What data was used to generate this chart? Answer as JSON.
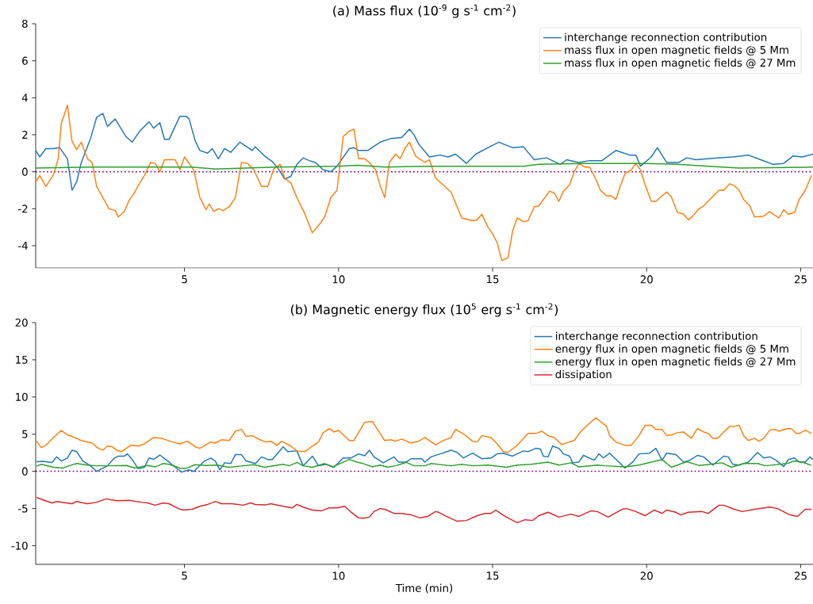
{
  "chart_data": [
    {
      "type": "line",
      "title": "(a) Mass flux (10$^{-9}$ g s$^{-1}$ cm$^{-2}$)",
      "xlim": [
        0.17,
        25.4
      ],
      "ylim": [
        -5.2,
        8
      ],
      "xticks": [
        5,
        10,
        15,
        20,
        25
      ],
      "yticks": [
        -4,
        -2,
        0,
        2,
        4,
        6,
        8
      ],
      "legend": "top right",
      "ref_lines": [
        {
          "axis": "y",
          "value": 0,
          "color": "#800080",
          "line_style": "dotted"
        }
      ],
      "series": [
        {
          "name": "interchange reconnection contribution",
          "color": "#1f77b4",
          "x": [
            0.17,
            0.3,
            0.5,
            0.75,
            0.95,
            1.2,
            1.35,
            1.5,
            1.65,
            1.95,
            2.15,
            2.35,
            2.5,
            2.75,
            3.1,
            3.3,
            3.55,
            3.85,
            4.0,
            4.2,
            4.35,
            4.5,
            4.85,
            5.05,
            5.15,
            5.35,
            5.5,
            5.75,
            5.9,
            6.1,
            6.3,
            6.5,
            6.8,
            7.2,
            7.3,
            7.6,
            7.85,
            8.05,
            8.25,
            8.45,
            8.65,
            8.85,
            9.05,
            9.25,
            9.5,
            9.75,
            9.95,
            10.35,
            10.5,
            10.65,
            10.95,
            11.35,
            11.7,
            12.05,
            12.3,
            12.45,
            12.6,
            12.95,
            13.3,
            13.55,
            13.8,
            14.15,
            14.45,
            14.85,
            15.2,
            15.65,
            16.0,
            16.35,
            16.75,
            17.2,
            17.4,
            17.8,
            18.15,
            18.55,
            19.0,
            19.45,
            19.65,
            19.8,
            20.15,
            20.35,
            20.65,
            21.05,
            21.3,
            21.6,
            22.3,
            22.8,
            23.3,
            23.7,
            24.1,
            24.45,
            24.75,
            25.05,
            25.4
          ],
          "values": [
            1.15,
            0.8,
            1.25,
            1.25,
            1.3,
            0.7,
            -1.0,
            -0.55,
            0.5,
            1.8,
            2.95,
            3.15,
            2.45,
            2.85,
            1.9,
            1.6,
            2.2,
            2.7,
            2.35,
            2.65,
            1.75,
            1.75,
            3.0,
            3.0,
            2.85,
            1.65,
            1.15,
            1.0,
            1.25,
            0.7,
            1.25,
            1.05,
            1.6,
            1.15,
            1.35,
            0.85,
            0.55,
            0.15,
            -0.4,
            -0.25,
            0.4,
            0.75,
            0.6,
            0.5,
            0.1,
            0.0,
            0.3,
            1.25,
            1.3,
            1.15,
            1.15,
            1.6,
            1.8,
            1.85,
            2.3,
            2.0,
            1.5,
            0.8,
            0.9,
            0.8,
            0.95,
            0.45,
            0.95,
            1.3,
            1.6,
            1.3,
            1.35,
            0.65,
            0.75,
            0.4,
            0.65,
            0.5,
            0.6,
            0.6,
            1.15,
            0.9,
            0.9,
            0.3,
            0.8,
            1.3,
            0.5,
            0.5,
            0.75,
            0.65,
            0.75,
            0.8,
            0.9,
            0.65,
            0.4,
            0.45,
            0.85,
            0.8,
            0.95
          ]
        },
        {
          "name": "mass flux in open magnetic fields @ 5 Mm",
          "color": "#ff7f0e",
          "x": [
            0.17,
            0.3,
            0.5,
            0.75,
            0.9,
            1.0,
            1.2,
            1.35,
            1.5,
            1.65,
            1.85,
            2.0,
            2.15,
            2.35,
            2.55,
            2.75,
            2.85,
            3.05,
            3.2,
            3.35,
            3.55,
            3.7,
            3.9,
            4.05,
            4.2,
            4.35,
            4.7,
            4.85,
            5.0,
            5.3,
            5.5,
            5.7,
            5.8,
            5.95,
            6.1,
            6.25,
            6.45,
            6.65,
            6.85,
            7.05,
            7.25,
            7.5,
            7.7,
            7.9,
            8.1,
            8.25,
            8.45,
            8.65,
            8.9,
            9.15,
            9.4,
            9.55,
            9.75,
            9.95,
            10.15,
            10.35,
            10.5,
            10.65,
            10.85,
            11.0,
            11.2,
            11.35,
            11.5,
            11.65,
            11.85,
            12.0,
            12.15,
            12.3,
            12.5,
            12.8,
            12.95,
            13.15,
            13.65,
            14.0,
            14.35,
            14.5,
            14.65,
            14.85,
            15.0,
            15.15,
            15.3,
            15.5,
            15.65,
            15.8,
            16.0,
            16.15,
            16.35,
            16.5,
            16.85,
            17.0,
            17.15,
            17.3,
            17.5,
            17.65,
            17.8,
            18.0,
            18.15,
            18.35,
            18.5,
            18.7,
            18.85,
            19.0,
            19.15,
            19.3,
            19.5,
            19.65,
            19.8,
            19.95,
            20.15,
            20.3,
            20.5,
            20.65,
            20.8,
            21.0,
            21.2,
            21.35,
            21.5,
            21.7,
            21.85,
            22.05,
            22.35,
            22.5,
            22.7,
            22.85,
            23.0,
            23.15,
            23.35,
            23.5,
            23.8,
            24.0,
            24.15,
            24.3,
            24.45,
            24.6,
            24.8,
            24.95,
            25.15,
            25.35
          ],
          "values": [
            -0.55,
            -0.2,
            -0.8,
            -0.15,
            0.7,
            2.6,
            3.6,
            1.65,
            1.2,
            1.6,
            0.7,
            0.5,
            -0.8,
            -1.4,
            -2.0,
            -2.1,
            -2.45,
            -2.15,
            -1.55,
            -1.2,
            -0.6,
            -0.2,
            0.5,
            0.45,
            0.0,
            0.65,
            0.65,
            0.1,
            0.8,
            0.1,
            -1.4,
            -2.05,
            -1.75,
            -2.15,
            -2.0,
            -2.1,
            -1.9,
            -1.4,
            0.5,
            0.45,
            0.1,
            -0.8,
            -0.8,
            0.15,
            0.4,
            -0.35,
            -0.6,
            -1.4,
            -2.25,
            -3.3,
            -2.8,
            -2.45,
            -1.4,
            -1.0,
            1.9,
            2.2,
            2.3,
            0.7,
            0.7,
            0.5,
            0.1,
            -0.75,
            -1.4,
            0.5,
            0.95,
            0.7,
            1.25,
            1.6,
            0.85,
            0.5,
            0.65,
            -0.35,
            -1.1,
            -2.5,
            -2.65,
            -2.6,
            -2.3,
            -3.0,
            -3.35,
            -3.85,
            -4.8,
            -4.65,
            -3.2,
            -2.5,
            -2.7,
            -2.65,
            -1.9,
            -1.85,
            -1.05,
            -1.15,
            -1.6,
            -1.05,
            -0.7,
            0.0,
            0.45,
            0.25,
            0.25,
            -0.4,
            -1.0,
            -1.3,
            -1.3,
            -1.5,
            -0.75,
            -0.1,
            0.1,
            0.45,
            0.1,
            -0.7,
            -1.6,
            -1.6,
            -1.3,
            -1.1,
            -1.35,
            -2.2,
            -2.3,
            -2.6,
            -2.4,
            -2.0,
            -1.85,
            -1.5,
            -1.0,
            -1.0,
            -0.65,
            -0.75,
            -1.0,
            -1.5,
            -1.85,
            -2.45,
            -2.4,
            -2.15,
            -2.35,
            -2.5,
            -2.05,
            -2.3,
            -2.2,
            -1.5,
            -1.0,
            -0.2
          ]
        },
        {
          "name": "mass flux in open magnetic fields @ 27 Mm",
          "color": "#2ca02c",
          "x": [
            0.17,
            2.0,
            4.0,
            5.2,
            6.0,
            8.0,
            10.0,
            10.6,
            11.5,
            13.0,
            16.0,
            16.5,
            18.0,
            20.0,
            21.0,
            22.0,
            23.0,
            25.4
          ],
          "values": [
            0.2,
            0.25,
            0.25,
            0.25,
            0.15,
            0.25,
            0.3,
            0.35,
            0.25,
            0.3,
            0.3,
            0.4,
            0.45,
            0.45,
            0.4,
            0.3,
            0.2,
            0.25
          ]
        }
      ]
    },
    {
      "type": "line",
      "title": "(b) Magnetic energy flux (10$^{5}$ erg s$^{-1}$ cm$^{-2}$)",
      "xlabel": "Time (min)",
      "xlim": [
        0.17,
        25.4
      ],
      "ylim": [
        -12.5,
        20
      ],
      "xticks": [
        5,
        10,
        15,
        20,
        25
      ],
      "yticks": [
        -10,
        -5,
        0,
        5,
        10,
        15,
        20
      ],
      "legend": "top right",
      "ref_lines": [
        {
          "axis": "y",
          "value": 0,
          "color": "#800080",
          "line_style": "dotted"
        }
      ],
      "series": [
        {
          "name": "interchange reconnection contribution",
          "color": "#1f77b4",
          "x": [
            0.2,
            0.4,
            0.7,
            0.85,
            1.0,
            1.2,
            1.35,
            1.5,
            1.7,
            1.95,
            2.15,
            2.5,
            2.7,
            2.85,
            3.05,
            3.15,
            3.3,
            3.5,
            3.7,
            3.85,
            4.0,
            4.2,
            4.5,
            4.7,
            4.9,
            5.15,
            5.3,
            5.65,
            5.85,
            6.0,
            6.15,
            6.3,
            6.5,
            6.65,
            6.85,
            7.0,
            7.3,
            7.5,
            7.7,
            7.85,
            8.2,
            8.35,
            8.65,
            8.85,
            9.15,
            9.35,
            9.6,
            9.85,
            10.15,
            10.4,
            10.65,
            10.85,
            11.0,
            11.15,
            11.45,
            11.8,
            11.95,
            12.2,
            12.35,
            12.7,
            12.8,
            13.0,
            13.3,
            13.65,
            13.85,
            14.05,
            14.35,
            14.65,
            14.95,
            15.15,
            15.35,
            15.65,
            16.0,
            16.15,
            16.4,
            16.55,
            16.65,
            16.8,
            16.95,
            17.15,
            17.3,
            17.5,
            17.6,
            17.8,
            17.95,
            18.3,
            18.45,
            18.6,
            18.8,
            19.3,
            19.55,
            19.75,
            20.1,
            20.3,
            20.5,
            20.65,
            20.95,
            21.2,
            21.4,
            21.65,
            21.85,
            22.15,
            22.5,
            22.65,
            22.8,
            23.0,
            23.3,
            23.6,
            23.8,
            24.0,
            24.2,
            24.45,
            24.6,
            24.8,
            24.95,
            25.15,
            25.3,
            25.4
          ],
          "values": [
            1.3,
            1.35,
            1.2,
            1.95,
            1.4,
            1.8,
            2.85,
            2.65,
            1.4,
            0.75,
            0.0,
            0.75,
            1.7,
            2.05,
            2.05,
            2.35,
            1.6,
            0.35,
            0.55,
            1.8,
            1.6,
            2.2,
            1.25,
            0.55,
            -0.1,
            0.2,
            0.0,
            1.4,
            1.8,
            1.4,
            0.2,
            1.15,
            1.05,
            2.25,
            2.25,
            1.4,
            1.05,
            1.95,
            1.6,
            1.6,
            3.3,
            2.65,
            2.75,
            0.75,
            2.05,
            0.75,
            0.95,
            0.55,
            1.8,
            1.8,
            2.35,
            2.1,
            2.85,
            1.95,
            1.15,
            1.95,
            1.25,
            1.25,
            1.7,
            1.7,
            1.25,
            1.95,
            2.35,
            2.85,
            2.55,
            1.8,
            2.45,
            1.7,
            1.8,
            2.35,
            2.45,
            2.05,
            2.75,
            2.65,
            3.1,
            3.0,
            2.05,
            1.95,
            3.4,
            3.1,
            2.35,
            2.05,
            1.15,
            1.25,
            2.15,
            1.5,
            2.35,
            1.8,
            2.45,
            0.45,
            1.25,
            2.35,
            2.45,
            3.1,
            1.5,
            2.45,
            2.25,
            1.25,
            1.5,
            2.15,
            1.95,
            0.85,
            2.05,
            1.95,
            0.95,
            0.85,
            1.25,
            2.55,
            1.8,
            1.95,
            1.5,
            0.65,
            1.6,
            1.8,
            1.25,
            1.25,
            1.95,
            1.6
          ]
        },
        {
          "name": "energy flux in open magnetic fields @ 5 Mm",
          "color": "#ff7f0e",
          "x": [
            0.2,
            0.35,
            0.5,
            0.75,
            1.0,
            1.2,
            1.35,
            1.65,
            2.0,
            2.2,
            2.35,
            2.5,
            2.65,
            2.8,
            2.95,
            3.25,
            3.5,
            3.7,
            4.0,
            4.25,
            4.6,
            4.85,
            5.1,
            5.35,
            5.5,
            5.85,
            6.0,
            6.2,
            6.45,
            6.65,
            6.85,
            7.0,
            7.2,
            7.5,
            7.65,
            7.8,
            8.0,
            8.15,
            8.45,
            8.65,
            8.9,
            9.15,
            9.35,
            9.5,
            9.7,
            9.85,
            10.0,
            10.35,
            10.5,
            10.85,
            11.1,
            11.35,
            11.5,
            11.7,
            11.85,
            12.05,
            12.35,
            12.6,
            12.8,
            13.15,
            13.35,
            13.65,
            13.8,
            14.1,
            14.35,
            14.5,
            14.65,
            14.95,
            15.15,
            15.35,
            15.5,
            15.8,
            16.15,
            16.4,
            16.6,
            16.8,
            17.0,
            17.25,
            17.55,
            17.65,
            17.85,
            18.1,
            18.35,
            18.5,
            18.7,
            18.8,
            19.0,
            19.3,
            19.5,
            19.75,
            19.95,
            20.15,
            20.3,
            20.5,
            20.65,
            20.8,
            21.0,
            21.2,
            21.45,
            21.65,
            21.85,
            22.0,
            22.15,
            22.3,
            22.5,
            22.7,
            22.85,
            23.0,
            23.15,
            23.3,
            23.5,
            23.65,
            23.8,
            24.0,
            24.15,
            24.3,
            24.55,
            24.7,
            24.85,
            24.95,
            25.15,
            25.35
          ],
          "values": [
            4.05,
            3.2,
            3.5,
            4.55,
            5.5,
            4.9,
            4.7,
            4.15,
            3.8,
            3.1,
            2.85,
            3.4,
            3.3,
            2.85,
            2.65,
            3.5,
            3.4,
            3.7,
            4.55,
            4.45,
            3.95,
            3.7,
            4.05,
            3.3,
            3.1,
            3.95,
            3.8,
            4.25,
            4.15,
            5.4,
            5.65,
            4.7,
            4.8,
            4.15,
            3.95,
            4.05,
            3.5,
            4.05,
            3.4,
            2.75,
            2.65,
            3.4,
            3.95,
            5.2,
            5.75,
            5.3,
            5.5,
            4.15,
            4.15,
            6.6,
            6.7,
            5.1,
            4.15,
            4.25,
            4.05,
            4.35,
            3.8,
            4.05,
            4.55,
            3.55,
            4.05,
            4.55,
            5.65,
            4.9,
            4.05,
            3.95,
            4.8,
            4.55,
            3.7,
            2.65,
            2.55,
            3.5,
            5.1,
            5.1,
            5.4,
            4.8,
            4.55,
            3.6,
            4.05,
            4.15,
            5.3,
            6.3,
            7.2,
            6.7,
            6.05,
            4.8,
            3.95,
            3.5,
            3.5,
            4.8,
            6.2,
            6.2,
            5.65,
            5.65,
            4.8,
            4.9,
            5.2,
            5.3,
            4.45,
            5.75,
            5.3,
            5.1,
            4.45,
            4.45,
            5.3,
            6.05,
            6.05,
            6.2,
            4.8,
            4.15,
            4.45,
            4.05,
            4.45,
            5.55,
            5.65,
            5.4,
            5.75,
            5.75,
            5.1,
            5.1,
            5.55,
            5.1
          ]
        },
        {
          "name": "energy flux in open magnetic fields @ 27 Mm",
          "color": "#2ca02c",
          "x": [
            0.2,
            0.35,
            0.75,
            1.05,
            1.25,
            1.5,
            1.85,
            2.15,
            2.55,
            3.1,
            3.4,
            3.8,
            4.05,
            4.3,
            4.5,
            4.85,
            5.05,
            5.35,
            5.7,
            6.05,
            6.45,
            6.9,
            7.25,
            7.6,
            7.95,
            8.2,
            8.4,
            8.65,
            8.85,
            9.15,
            9.55,
            9.8,
            10.35,
            10.6,
            10.8,
            11.1,
            11.35,
            11.6,
            11.85,
            12.2,
            12.45,
            12.8,
            13.0,
            13.65,
            14.0,
            14.35,
            14.85,
            15.45,
            15.8,
            16.25,
            16.8,
            17.15,
            17.55,
            17.8,
            18.4,
            18.65,
            19.3,
            19.75,
            20.5,
            20.8,
            21.3,
            21.7,
            22.05,
            22.45,
            22.75,
            23.15,
            23.6,
            23.85,
            24.55,
            24.8,
            25.05,
            25.35
          ],
          "values": [
            0.7,
            0.95,
            0.55,
            0.45,
            0.75,
            1.05,
            0.85,
            0.75,
            0.75,
            0.8,
            0.45,
            0.8,
            0.6,
            1.05,
            0.95,
            0.45,
            0.4,
            0.9,
            0.8,
            0.85,
            0.55,
            0.75,
            0.9,
            0.55,
            0.8,
            0.95,
            0.75,
            1.2,
            0.75,
            0.55,
            1.05,
            0.6,
            1.6,
            1.25,
            1.05,
            0.6,
            0.85,
            0.55,
            0.75,
            1.2,
            0.75,
            0.75,
            1.05,
            0.75,
            0.95,
            0.75,
            0.85,
            0.55,
            0.85,
            0.95,
            1.25,
            0.85,
            1.15,
            0.6,
            0.85,
            0.75,
            0.6,
            0.85,
            1.6,
            0.55,
            1.3,
            0.8,
            0.95,
            1.15,
            0.55,
            1.05,
            1.05,
            0.75,
            1.05,
            1.4,
            1.25,
            0.8
          ]
        },
        {
          "name": "dissipation",
          "color": "#d62728",
          "x": [
            0.2,
            0.45,
            0.7,
            0.85,
            1.35,
            1.5,
            1.85,
            2.15,
            2.45,
            2.8,
            3.2,
            3.6,
            3.8,
            4.05,
            4.3,
            4.5,
            4.8,
            4.95,
            5.25,
            5.5,
            5.75,
            6.0,
            6.2,
            6.55,
            6.9,
            7.15,
            7.3,
            7.65,
            7.8,
            8.2,
            8.5,
            8.65,
            8.85,
            9.15,
            9.45,
            9.7,
            9.95,
            10.2,
            10.4,
            10.65,
            10.8,
            11.0,
            11.15,
            11.35,
            11.5,
            11.8,
            12.05,
            12.35,
            12.65,
            12.9,
            13.15,
            13.25,
            13.5,
            13.85,
            14.15,
            14.5,
            14.75,
            14.95,
            15.1,
            15.4,
            15.8,
            16.05,
            16.3,
            16.5,
            16.8,
            17.15,
            17.55,
            17.8,
            18.2,
            18.4,
            18.75,
            19.2,
            19.35,
            19.65,
            19.95,
            20.25,
            20.5,
            20.65,
            20.95,
            21.1,
            21.35,
            21.8,
            22.0,
            22.35,
            22.5,
            22.85,
            23.1,
            23.5,
            24.0,
            24.25,
            24.65,
            24.9,
            25.15,
            25.35
          ],
          "values": [
            -3.5,
            -3.9,
            -4.25,
            -4.05,
            -4.35,
            -4.05,
            -4.35,
            -4.15,
            -3.7,
            -3.95,
            -3.9,
            -4.15,
            -4.25,
            -4.55,
            -4.25,
            -4.35,
            -5.0,
            -5.2,
            -5.1,
            -4.7,
            -4.45,
            -4.05,
            -4.35,
            -4.35,
            -4.55,
            -4.25,
            -4.45,
            -4.5,
            -4.35,
            -4.7,
            -4.9,
            -4.45,
            -4.8,
            -5.2,
            -5.3,
            -4.9,
            -4.9,
            -4.7,
            -5.45,
            -6.25,
            -6.3,
            -6.15,
            -5.4,
            -5.0,
            -5.1,
            -5.65,
            -5.65,
            -5.85,
            -6.25,
            -6.05,
            -5.4,
            -5.5,
            -6.05,
            -6.7,
            -6.6,
            -5.95,
            -5.65,
            -5.65,
            -5.2,
            -6.05,
            -6.9,
            -6.5,
            -6.6,
            -5.95,
            -5.5,
            -6.15,
            -5.75,
            -6.05,
            -5.3,
            -5.4,
            -6.15,
            -5.1,
            -5.0,
            -5.4,
            -5.95,
            -5.2,
            -5.65,
            -5.2,
            -5.5,
            -5.85,
            -5.5,
            -5.4,
            -5.65,
            -4.55,
            -4.55,
            -5.1,
            -5.4,
            -5.1,
            -4.8,
            -5.0,
            -5.85,
            -6.05,
            -5.1,
            -5.1
          ]
        }
      ]
    }
  ]
}
